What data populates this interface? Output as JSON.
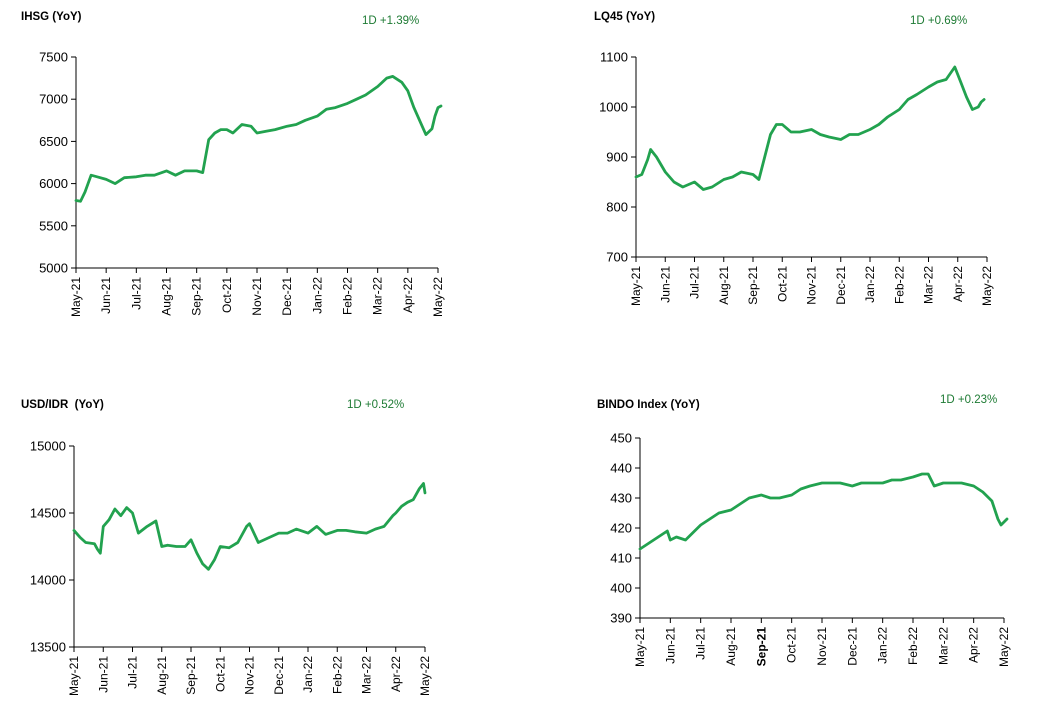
{
  "colors": {
    "line": "#22a24f",
    "change_text": "#1e7b34",
    "axis": "#000000"
  },
  "chart_data": [
    {
      "type": "line",
      "title": "IHSG (YoY)",
      "change": "1D +1.39%",
      "y_ticks": [
        "7500",
        "7000",
        "6500",
        "6000",
        "5500",
        "5000"
      ],
      "ylim": [
        5000,
        7500
      ],
      "x_ticks": [
        "May-21",
        "Jun-21",
        "Jul-21",
        "Aug-21",
        "Sep-21",
        "Oct-21",
        "Nov-21",
        "Dec-21",
        "Jan-22",
        "Feb-22",
        "Mar-22",
        "Apr-22",
        "May-22"
      ],
      "x": [
        0,
        0.15,
        0.3,
        0.5,
        0.7,
        1.0,
        1.3,
        1.6,
        2.0,
        2.3,
        2.6,
        3.0,
        3.3,
        3.6,
        4.0,
        4.2,
        4.4,
        4.6,
        4.8,
        5.0,
        5.2,
        5.5,
        5.8,
        6.0,
        6.3,
        6.6,
        7.0,
        7.3,
        7.6,
        8.0,
        8.3,
        8.6,
        9.0,
        9.3,
        9.6,
        10.0,
        10.3,
        10.5,
        10.8,
        11.0,
        11.2,
        11.6,
        11.8,
        11.9,
        12.0,
        12.1
      ],
      "values": [
        5800,
        5790,
        5900,
        6100,
        6080,
        6050,
        6000,
        6070,
        6080,
        6100,
        6100,
        6150,
        6100,
        6150,
        6150,
        6130,
        6520,
        6600,
        6640,
        6640,
        6600,
        6700,
        6680,
        6600,
        6620,
        6640,
        6680,
        6700,
        6750,
        6800,
        6880,
        6900,
        6950,
        7000,
        7050,
        7150,
        7250,
        7270,
        7200,
        7100,
        6900,
        6580,
        6650,
        6800,
        6900,
        6920
      ]
    },
    {
      "type": "line",
      "title": "LQ45 (YoY)",
      "change": "1D +0.69%",
      "y_ticks": [
        "1100",
        "1000",
        "900",
        "800",
        "700"
      ],
      "ylim": [
        700,
        1100
      ],
      "x_ticks": [
        "May-21",
        "Jun-21",
        "Jul-21",
        "Aug-21",
        "Sep-21",
        "Oct-21",
        "Nov-21",
        "Dec-21",
        "Jan-22",
        "Feb-22",
        "Mar-22",
        "Apr-22",
        "May-22"
      ],
      "x": [
        0,
        0.2,
        0.4,
        0.5,
        0.7,
        1.0,
        1.3,
        1.6,
        2.0,
        2.3,
        2.6,
        3.0,
        3.3,
        3.6,
        4.0,
        4.2,
        4.4,
        4.6,
        4.8,
        5.0,
        5.3,
        5.6,
        6.0,
        6.3,
        6.6,
        7.0,
        7.3,
        7.6,
        8.0,
        8.3,
        8.6,
        9.0,
        9.3,
        9.6,
        10.0,
        10.3,
        10.6,
        10.9,
        11.1,
        11.3,
        11.5,
        11.7,
        11.8,
        11.9
      ],
      "values": [
        860,
        865,
        895,
        915,
        900,
        870,
        850,
        840,
        850,
        835,
        840,
        855,
        860,
        870,
        865,
        855,
        900,
        945,
        965,
        965,
        950,
        950,
        955,
        945,
        940,
        935,
        945,
        945,
        955,
        965,
        980,
        995,
        1015,
        1025,
        1040,
        1050,
        1055,
        1080,
        1050,
        1020,
        995,
        1000,
        1010,
        1015
      ]
    },
    {
      "type": "line",
      "title": "USD/IDR  (YoY)",
      "change": "1D +0.52%",
      "y_ticks": [
        "15000",
        "14500",
        "14000",
        "13500"
      ],
      "ylim": [
        13500,
        15000
      ],
      "x_ticks": [
        "May-21",
        "Jun-21",
        "Jul-21",
        "Aug-21",
        "Sep-21",
        "Oct-21",
        "Nov-21",
        "Dec-21",
        "Jan-22",
        "Feb-22",
        "Mar-22",
        "Apr-22",
        "May-22"
      ],
      "x": [
        0,
        0.2,
        0.4,
        0.7,
        0.8,
        0.9,
        1.0,
        1.2,
        1.4,
        1.6,
        1.8,
        2.0,
        2.2,
        2.5,
        2.8,
        3.0,
        3.2,
        3.5,
        3.8,
        4.0,
        4.2,
        4.4,
        4.6,
        4.8,
        5.0,
        5.3,
        5.6,
        5.9,
        6.0,
        6.3,
        6.6,
        7.0,
        7.3,
        7.6,
        8.0,
        8.3,
        8.6,
        9.0,
        9.3,
        9.6,
        10.0,
        10.3,
        10.6,
        10.9,
        11.0,
        11.2,
        11.4,
        11.6,
        11.8,
        11.95,
        12.0
      ],
      "values": [
        14370,
        14320,
        14280,
        14270,
        14230,
        14200,
        14400,
        14450,
        14530,
        14480,
        14540,
        14500,
        14350,
        14400,
        14440,
        14250,
        14260,
        14250,
        14250,
        14300,
        14200,
        14120,
        14080,
        14150,
        14250,
        14240,
        14280,
        14400,
        14420,
        14280,
        14310,
        14350,
        14350,
        14380,
        14350,
        14400,
        14340,
        14370,
        14370,
        14360,
        14350,
        14380,
        14400,
        14480,
        14500,
        14550,
        14580,
        14600,
        14680,
        14720,
        14650
      ]
    },
    {
      "type": "line",
      "title": "BINDO Index (YoY)",
      "change": "1D +0.23%",
      "y_ticks": [
        "450",
        "440",
        "430",
        "420",
        "410",
        "400",
        "390"
      ],
      "ylim": [
        390,
        450
      ],
      "x_ticks": [
        "May-21",
        "Jun-21",
        "Jul-21",
        "Aug-21",
        "Sep-21",
        "Oct-21",
        "Nov-21",
        "Dec-21",
        "Jan-22",
        "Feb-22",
        "Mar-22",
        "Apr-22",
        "May-22"
      ],
      "x_ticks_bold": [
        "Sep-21"
      ],
      "x": [
        0,
        0.3,
        0.6,
        0.9,
        1.0,
        1.2,
        1.5,
        1.8,
        2.0,
        2.3,
        2.6,
        3.0,
        3.3,
        3.6,
        4.0,
        4.3,
        4.6,
        5.0,
        5.3,
        5.6,
        6.0,
        6.3,
        6.6,
        7.0,
        7.3,
        7.6,
        8.0,
        8.3,
        8.6,
        9.0,
        9.3,
        9.5,
        9.7,
        10.0,
        10.3,
        10.6,
        11.0,
        11.3,
        11.6,
        11.8,
        11.9,
        12.0,
        12.1
      ],
      "values": [
        413,
        415,
        417,
        419,
        416,
        417,
        416,
        419,
        421,
        423,
        425,
        426,
        428,
        430,
        431,
        430,
        430,
        431,
        433,
        434,
        435,
        435,
        435,
        434,
        435,
        435,
        435,
        436,
        436,
        437,
        438,
        438,
        434,
        435,
        435,
        435,
        434,
        432,
        429,
        423,
        421,
        422,
        423
      ]
    }
  ]
}
